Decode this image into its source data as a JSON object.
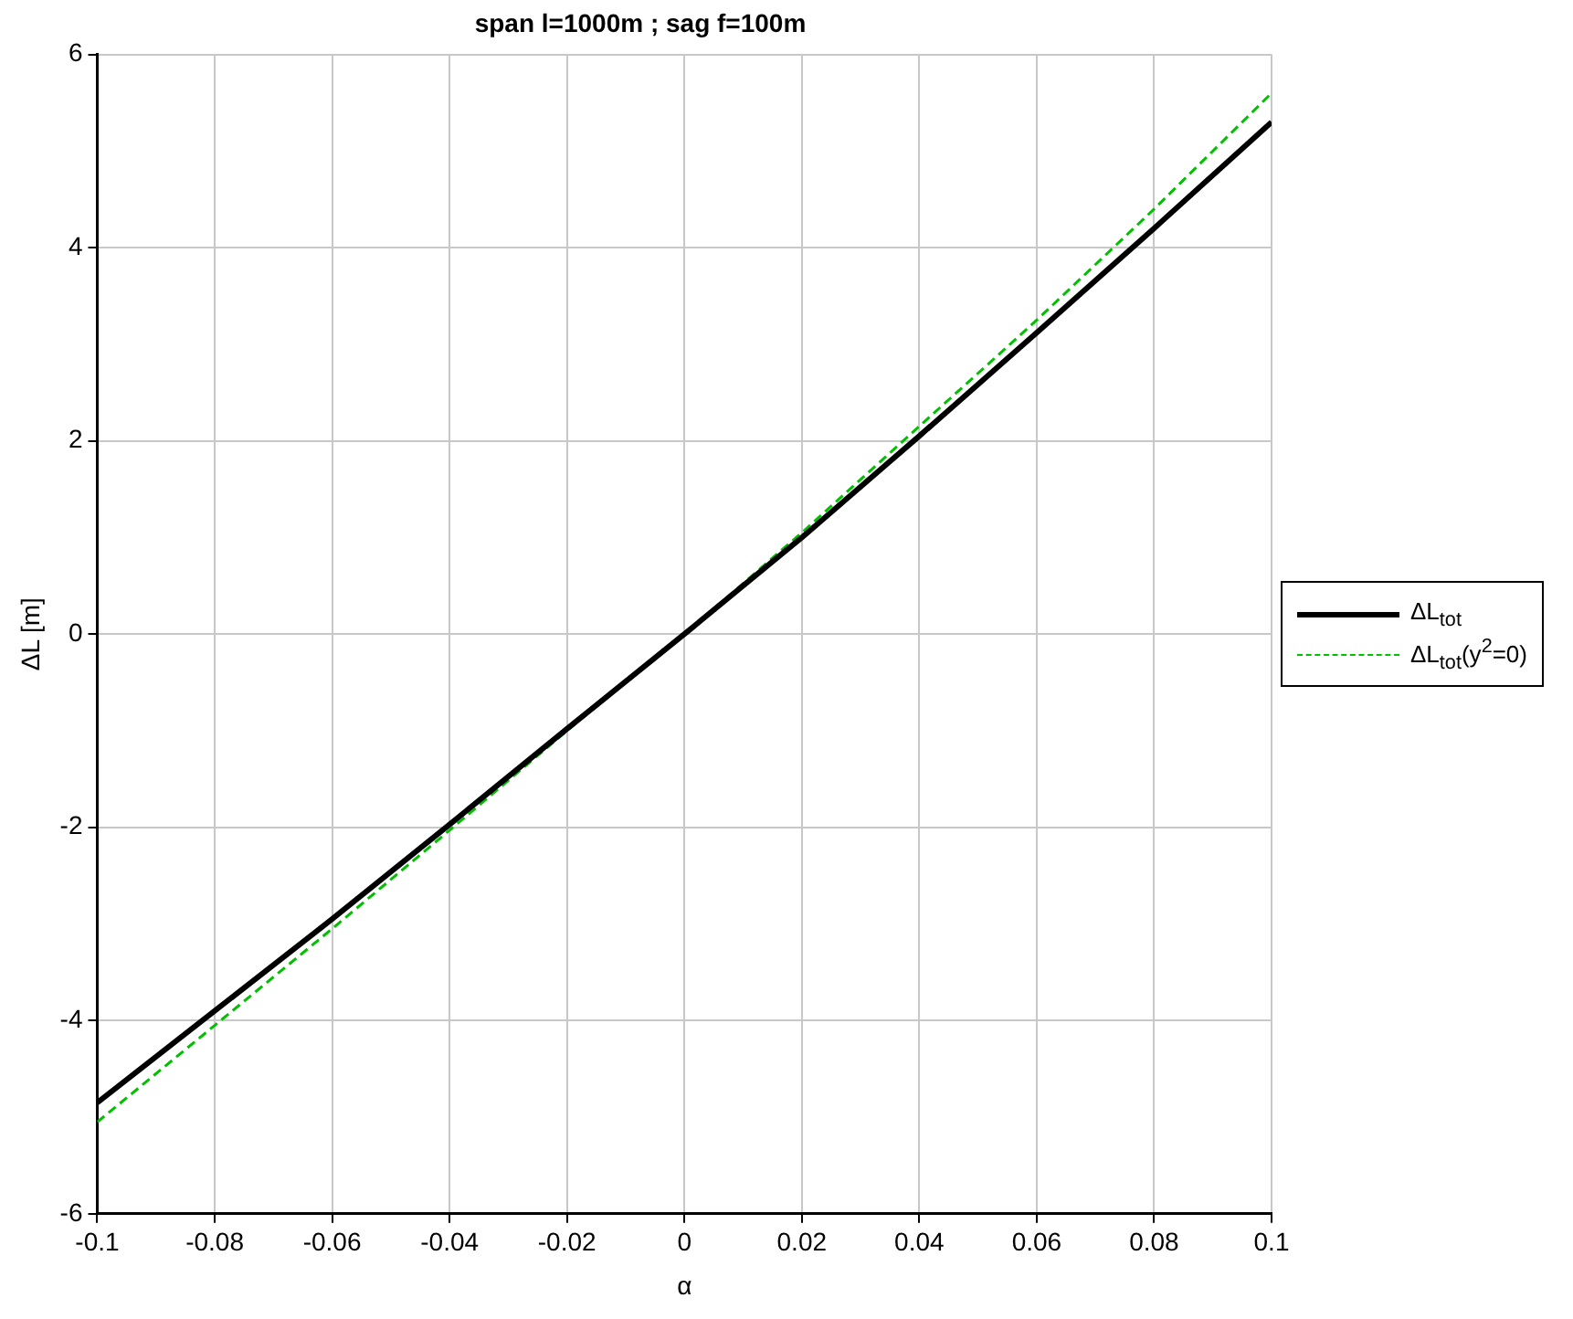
{
  "chart_data": {
    "type": "line",
    "title": "span l=1000m ; sag f=100m",
    "xlabel": "α",
    "ylabel": "ΔL [m]",
    "x": [
      -0.1,
      -0.08,
      -0.06,
      -0.04,
      -0.02,
      0,
      0.02,
      0.04,
      0.06,
      0.08,
      0.1
    ],
    "series": [
      {
        "name": "ΔL$_{tot}$",
        "color": "#000000",
        "line_style": "solid",
        "values": [
          -4.85,
          -3.9,
          -2.95,
          -1.97,
          -0.98,
          0,
          1.0,
          2.05,
          3.12,
          4.2,
          5.3
        ]
      },
      {
        "name": "ΔL$_{tot}$(y$^{2}$=0)",
        "color": "#00c000",
        "line_style": "dashed",
        "values": [
          -5.05,
          -4.05,
          -3.05,
          -2.03,
          -1.0,
          0,
          1.05,
          2.15,
          3.25,
          4.4,
          5.6
        ]
      }
    ],
    "xlim": [
      -0.1,
      0.1
    ],
    "xticks": [
      -0.1,
      -0.08,
      -0.06,
      -0.04,
      -0.02,
      0,
      0.02,
      0.04,
      0.06,
      0.08,
      0.1
    ],
    "ylim": [
      -6,
      6
    ],
    "yticks": [
      -6,
      -4,
      -2,
      0,
      2,
      4,
      6
    ],
    "grid": true,
    "legend": "right",
    "marker": "none"
  }
}
